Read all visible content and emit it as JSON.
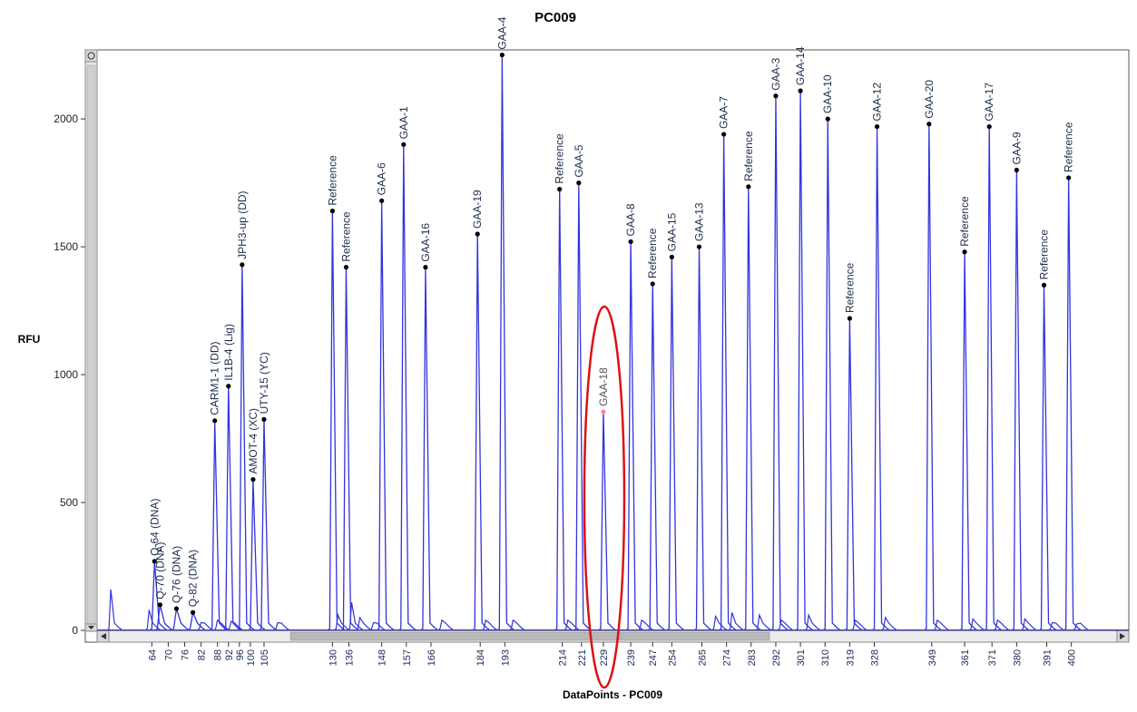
{
  "chart_data": {
    "type": "line",
    "title": "PC009",
    "xlabel": "DataPoints - PC009",
    "ylabel": "RFU",
    "ylim": [
      0,
      2270
    ],
    "xlim": [
      44,
      421
    ],
    "yticks": [
      0,
      500,
      1000,
      1500,
      2000
    ],
    "xticks": [
      64,
      70,
      76,
      82,
      88,
      92,
      96,
      100,
      105,
      130,
      136,
      148,
      157,
      166,
      184,
      193,
      214,
      221,
      229,
      239,
      247,
      254,
      265,
      274,
      283,
      292,
      301,
      310,
      319,
      328,
      349,
      361,
      371,
      380,
      391,
      400
    ],
    "grid": false,
    "peaks": [
      {
        "label": "Q-64 (DNA)",
        "x": 65,
        "y": 270
      },
      {
        "label": "Q-70 (DNA)",
        "x": 67,
        "y": 100
      },
      {
        "label": "Q-76 (DNA)",
        "x": 73,
        "y": 85
      },
      {
        "label": "Q-82 (DNA)",
        "x": 79,
        "y": 70
      },
      {
        "label": "CARM1-1 (DD)",
        "x": 87,
        "y": 820
      },
      {
        "label": "IL1B-4 (Lig)",
        "x": 92,
        "y": 955
      },
      {
        "label": "JPH3-up (DD)",
        "x": 97,
        "y": 1430
      },
      {
        "label": "AMOT-4 (XC)",
        "x": 101,
        "y": 590
      },
      {
        "label": "UTY-15 (YC)",
        "x": 105,
        "y": 825
      },
      {
        "label": "Reference",
        "x": 130,
        "y": 1640
      },
      {
        "label": "Reference",
        "x": 135,
        "y": 1420
      },
      {
        "label": "GAA-6",
        "x": 148,
        "y": 1680
      },
      {
        "label": "GAA-1",
        "x": 156,
        "y": 1900
      },
      {
        "label": "GAA-16",
        "x": 164,
        "y": 1420
      },
      {
        "label": "GAA-19",
        "x": 183,
        "y": 1550
      },
      {
        "label": "GAA-4",
        "x": 192,
        "y": 2250
      },
      {
        "label": "Reference",
        "x": 213,
        "y": 1725
      },
      {
        "label": "GAA-5",
        "x": 220,
        "y": 1750
      },
      {
        "label": "GAA-18",
        "x": 229,
        "y": 855,
        "highlighted": true
      },
      {
        "label": "GAA-8",
        "x": 239,
        "y": 1520
      },
      {
        "label": "Reference",
        "x": 247,
        "y": 1355
      },
      {
        "label": "GAA-15",
        "x": 254,
        "y": 1460
      },
      {
        "label": "GAA-13",
        "x": 264,
        "y": 1500
      },
      {
        "label": "GAA-7",
        "x": 273,
        "y": 1940
      },
      {
        "label": "Reference",
        "x": 282,
        "y": 1735
      },
      {
        "label": "GAA-3",
        "x": 292,
        "y": 2090
      },
      {
        "label": "GAA-14",
        "x": 301,
        "y": 2110
      },
      {
        "label": "GAA-10",
        "x": 311,
        "y": 2000
      },
      {
        "label": "Reference",
        "x": 319,
        "y": 1220
      },
      {
        "label": "GAA-12",
        "x": 329,
        "y": 1970
      },
      {
        "label": "GAA-20",
        "x": 348,
        "y": 1980
      },
      {
        "label": "Reference",
        "x": 361,
        "y": 1480
      },
      {
        "label": "GAA-17",
        "x": 370,
        "y": 1970
      },
      {
        "label": "GAA-9",
        "x": 380,
        "y": 1800
      },
      {
        "label": "Reference",
        "x": 390,
        "y": 1350
      },
      {
        "label": "Reference",
        "x": 399,
        "y": 1770
      }
    ],
    "minor_peaks": [
      {
        "x": 49,
        "y": 160
      },
      {
        "x": 63,
        "y": 80
      },
      {
        "x": 82,
        "y": 30
      },
      {
        "x": 88,
        "y": 40
      },
      {
        "x": 93,
        "y": 35
      },
      {
        "x": 110,
        "y": 30
      },
      {
        "x": 132,
        "y": 60
      },
      {
        "x": 137,
        "y": 110
      },
      {
        "x": 140,
        "y": 50
      },
      {
        "x": 145,
        "y": 30
      },
      {
        "x": 170,
        "y": 40
      },
      {
        "x": 186,
        "y": 40
      },
      {
        "x": 196,
        "y": 40
      },
      {
        "x": 216,
        "y": 40
      },
      {
        "x": 243,
        "y": 40
      },
      {
        "x": 270,
        "y": 55
      },
      {
        "x": 276,
        "y": 70
      },
      {
        "x": 286,
        "y": 60
      },
      {
        "x": 294,
        "y": 40
      },
      {
        "x": 304,
        "y": 60
      },
      {
        "x": 321,
        "y": 40
      },
      {
        "x": 332,
        "y": 50
      },
      {
        "x": 351,
        "y": 40
      },
      {
        "x": 364,
        "y": 45
      },
      {
        "x": 373,
        "y": 40
      },
      {
        "x": 383,
        "y": 45
      },
      {
        "x": 393,
        "y": 30
      },
      {
        "x": 402,
        "y": 25
      }
    ],
    "colors": {
      "trace": "#3333dd",
      "marker": "#000000",
      "highlight": "#dd1111",
      "highlight_marker": "#ff8888"
    }
  }
}
